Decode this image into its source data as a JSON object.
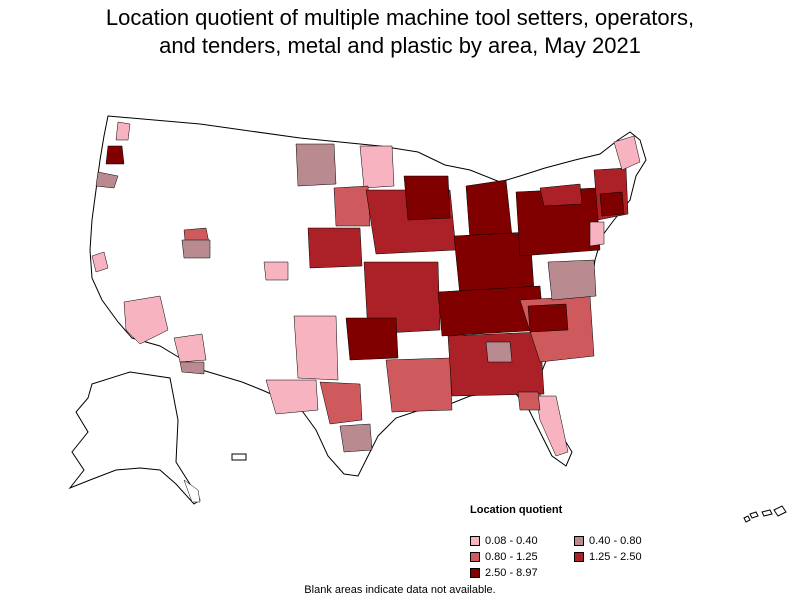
{
  "title_line1": "Location quotient of multiple machine tool setters, operators,",
  "title_line2": "and tenders, metal and plastic by area, May 2021",
  "legend": {
    "title": "Location quotient",
    "items": [
      {
        "label": "0.08 - 0.40",
        "color": "#f7b3c0"
      },
      {
        "label": "0.40 - 0.80",
        "color": "#b98a8f"
      },
      {
        "label": "0.80 - 1.25",
        "color": "#cf5a5e"
      },
      {
        "label": "1.25 - 2.50",
        "color": "#ab2127"
      },
      {
        "label": "2.50 - 8.97",
        "color": "#800000"
      }
    ]
  },
  "footnote": "Blank areas indicate data not available.",
  "colors": {
    "none": "#ffffff",
    "border": "#000000"
  }
}
